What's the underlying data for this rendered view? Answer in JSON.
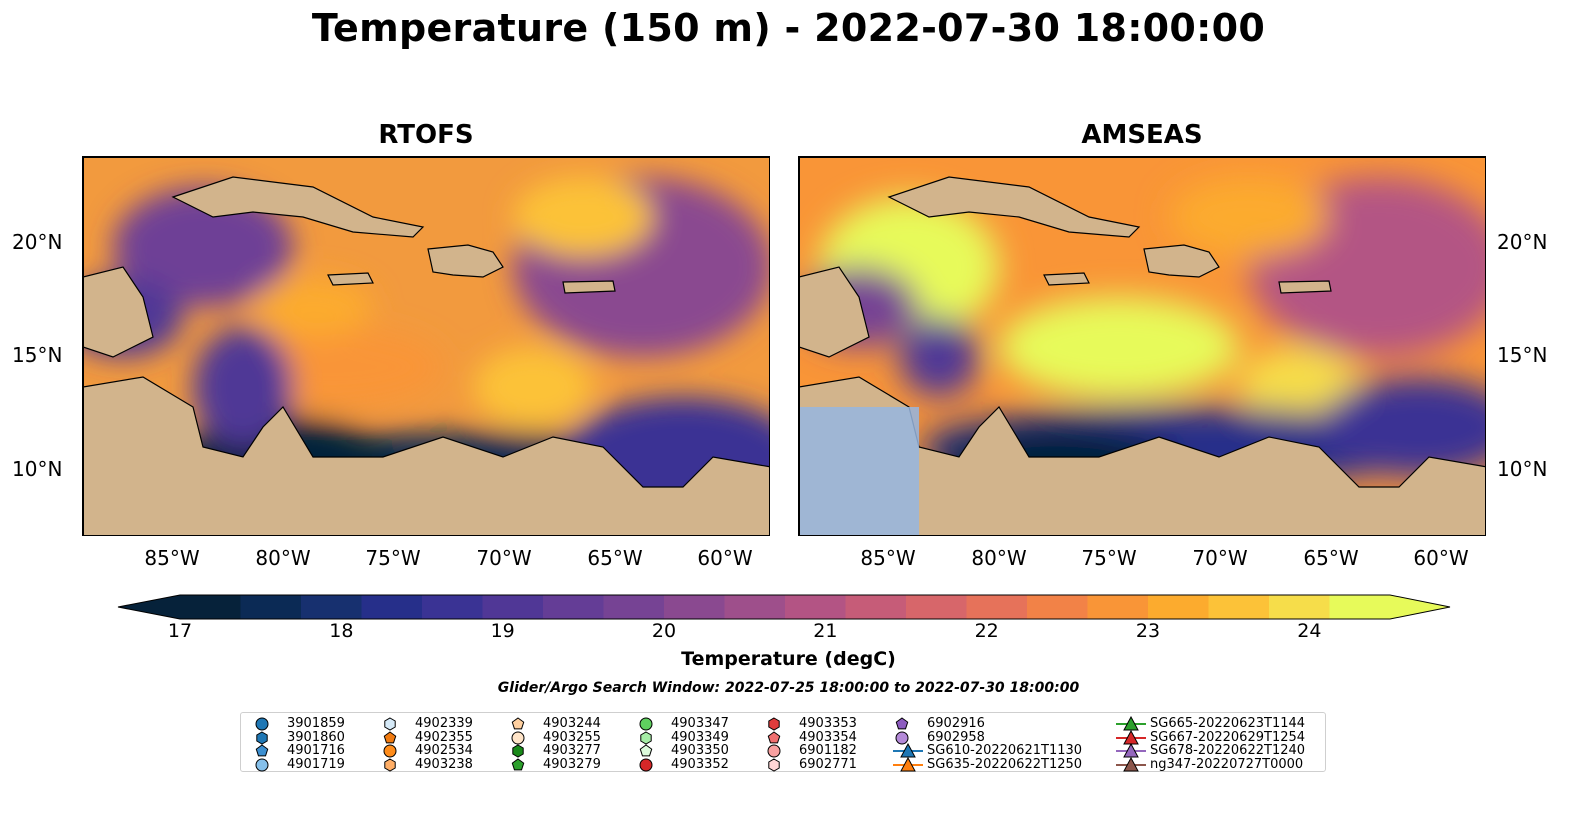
{
  "title": "Temperature (150 m) - 2022-07-30 18:00:00",
  "panels": [
    {
      "title": "RTOFS"
    },
    {
      "title": "AMSEAS"
    }
  ],
  "lon_ticks": [
    "85°W",
    "80°W",
    "75°W",
    "70°W",
    "65°W",
    "60°W"
  ],
  "lat_ticks": [
    "20°N",
    "15°N",
    "10°N"
  ],
  "colorbar": {
    "label": "Temperature (degC)",
    "ticks": [
      "17",
      "18",
      "19",
      "20",
      "21",
      "22",
      "23",
      "24"
    ],
    "range": [
      17,
      24.5
    ],
    "colors": [
      "#06223a",
      "#0b2a55",
      "#17306f",
      "#262f8a",
      "#3a3394",
      "#503796",
      "#643d96",
      "#764394",
      "#8a4990",
      "#9e4f8b",
      "#b35484",
      "#c65c78",
      "#d7666a",
      "#e6725a",
      "#f28247",
      "#f99537",
      "#fcab2e",
      "#fcc238",
      "#f6dd4a",
      "#e7fa5a"
    ]
  },
  "search_window": "Glider/Argo Search Window: 2022-07-25 18:00:00 to 2022-07-30 18:00:00",
  "legend": [
    {
      "label": "3901859",
      "marker": "circle",
      "color": "#1f77b4"
    },
    {
      "label": "3901860",
      "marker": "hexagon",
      "color": "#1f77b4"
    },
    {
      "label": "4901716",
      "marker": "pentagon",
      "color": "#3c8fd0"
    },
    {
      "label": "4901719",
      "marker": "circle",
      "color": "#86c0ea"
    },
    {
      "label": "4902339",
      "marker": "hexagon",
      "color": "#d6eaf8"
    },
    {
      "label": "4902355",
      "marker": "pentagon",
      "color": "#f07a10"
    },
    {
      "label": "4902534",
      "marker": "circle",
      "color": "#ff8c1a"
    },
    {
      "label": "4903238",
      "marker": "hexagon",
      "color": "#ffae66"
    },
    {
      "label": "4903244",
      "marker": "pentagon",
      "color": "#ffd0a0"
    },
    {
      "label": "4903255",
      "marker": "circle",
      "color": "#ffe4c8"
    },
    {
      "label": "4903277",
      "marker": "hexagon",
      "color": "#1a8a1a"
    },
    {
      "label": "4903279",
      "marker": "pentagon",
      "color": "#2ca02c"
    },
    {
      "label": "4903347",
      "marker": "circle",
      "color": "#5fcf5f"
    },
    {
      "label": "4903349",
      "marker": "hexagon",
      "color": "#a6eda6"
    },
    {
      "label": "4903350",
      "marker": "pentagon",
      "color": "#dcfadc"
    },
    {
      "label": "4903352",
      "marker": "circle",
      "color": "#d62728"
    },
    {
      "label": "4903353",
      "marker": "hexagon",
      "color": "#e03c3c"
    },
    {
      "label": "4903354",
      "marker": "pentagon",
      "color": "#f07070"
    },
    {
      "label": "6901182",
      "marker": "circle",
      "color": "#f8a0a0"
    },
    {
      "label": "6902771",
      "marker": "hexagon",
      "color": "#ffd6d6"
    },
    {
      "label": "6902916",
      "marker": "pentagon",
      "color": "#8d5cc0"
    },
    {
      "label": "6902958",
      "marker": "circle",
      "color": "#b48ad8"
    },
    {
      "label": "SG610-20220621T1130",
      "marker": "triangle-line",
      "color": "#1f77b4"
    },
    {
      "label": "SG635-20220622T1250",
      "marker": "triangle-line",
      "color": "#ff7f0e"
    },
    {
      "label": "SG665-20220623T1144",
      "marker": "triangle-line",
      "color": "#2ca02c"
    },
    {
      "label": "SG667-20220629T1254",
      "marker": "triangle-line",
      "color": "#d62728"
    },
    {
      "label": "SG678-20220622T1240",
      "marker": "triangle-line",
      "color": "#9467bd"
    },
    {
      "label": "ng347-20220727T0000",
      "marker": "triangle-line",
      "color": "#8c564b"
    }
  ]
}
